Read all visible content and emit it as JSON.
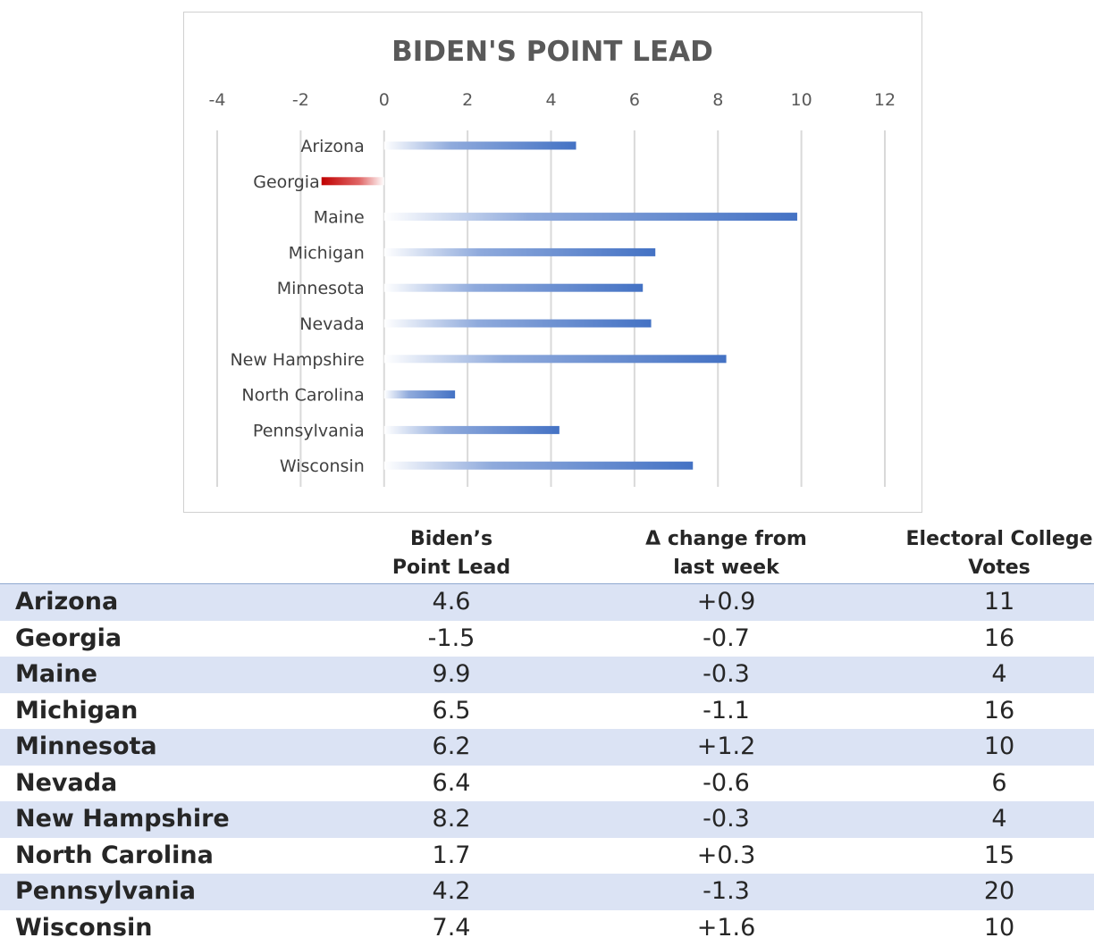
{
  "chart_data": {
    "type": "bar",
    "orientation": "horizontal",
    "title": "BIDEN'S POINT LEAD",
    "xlim": [
      -4,
      12
    ],
    "x_ticks": [
      "-4",
      "-2",
      "0",
      "2",
      "4",
      "6",
      "8",
      "10",
      "12"
    ],
    "x_axis_position": "top",
    "grid": true,
    "categories": [
      "Arizona",
      "Georgia",
      "Maine",
      "Michigan",
      "Minnesota",
      "Nevada",
      "New Hampshire",
      "North Carolina",
      "Pennsylvania",
      "Wisconsin"
    ],
    "values": [
      4.6,
      -1.5,
      9.9,
      6.5,
      6.2,
      6.4,
      8.2,
      1.7,
      4.2,
      7.4
    ],
    "colors": {
      "positive": "#4472c4",
      "negative": "#c00000"
    }
  },
  "table": {
    "headers": {
      "lead": "Biden’s\nPoint Lead",
      "change": "Δ change from\nlast week",
      "votes": "Electoral College\nVotes"
    },
    "rows": [
      {
        "state": "Arizona",
        "lead": "4.6",
        "change": "+0.9",
        "votes": "11"
      },
      {
        "state": "Georgia",
        "lead": "-1.5",
        "change": "-0.7",
        "votes": "16"
      },
      {
        "state": "Maine",
        "lead": "9.9",
        "change": "-0.3",
        "votes": "4"
      },
      {
        "state": "Michigan",
        "lead": "6.5",
        "change": "-1.1",
        "votes": "16"
      },
      {
        "state": "Minnesota",
        "lead": "6.2",
        "change": "+1.2",
        "votes": "10"
      },
      {
        "state": "Nevada",
        "lead": "6.4",
        "change": "-0.6",
        "votes": "6"
      },
      {
        "state": "New Hampshire",
        "lead": "8.2",
        "change": "-0.3",
        "votes": "4"
      },
      {
        "state": "North Carolina",
        "lead": "1.7",
        "change": "+0.3",
        "votes": "15"
      },
      {
        "state": "Pennsylvania",
        "lead": "4.2",
        "change": "-1.3",
        "votes": "20"
      },
      {
        "state": "Wisconsin",
        "lead": "7.4",
        "change": "+1.6",
        "votes": "10"
      }
    ],
    "shade_color": "#dbe3f4"
  }
}
